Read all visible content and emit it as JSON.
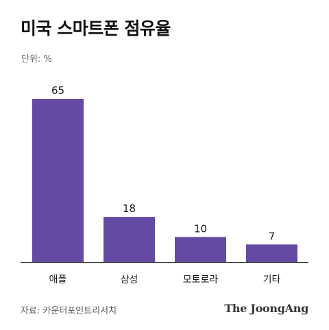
{
  "header": {
    "title": "미국 스마트폰 점유율",
    "unit": "단위: %"
  },
  "chart_data": {
    "type": "bar",
    "title": "미국 스마트폰 점유율",
    "unit": "단위: %",
    "categories": [
      "애플",
      "삼성",
      "모토로라",
      "기타"
    ],
    "values": [
      65,
      18,
      10,
      7
    ],
    "value_labels": [
      "65",
      "18",
      "10",
      "7"
    ],
    "ylim": [
      0,
      65
    ],
    "grid": false,
    "legend": "none",
    "bar_color": "#644aa3",
    "axis_color": "#333333"
  },
  "footer": {
    "source": "자료: 카운터포인트리서치",
    "brand": "The JoongAng"
  }
}
